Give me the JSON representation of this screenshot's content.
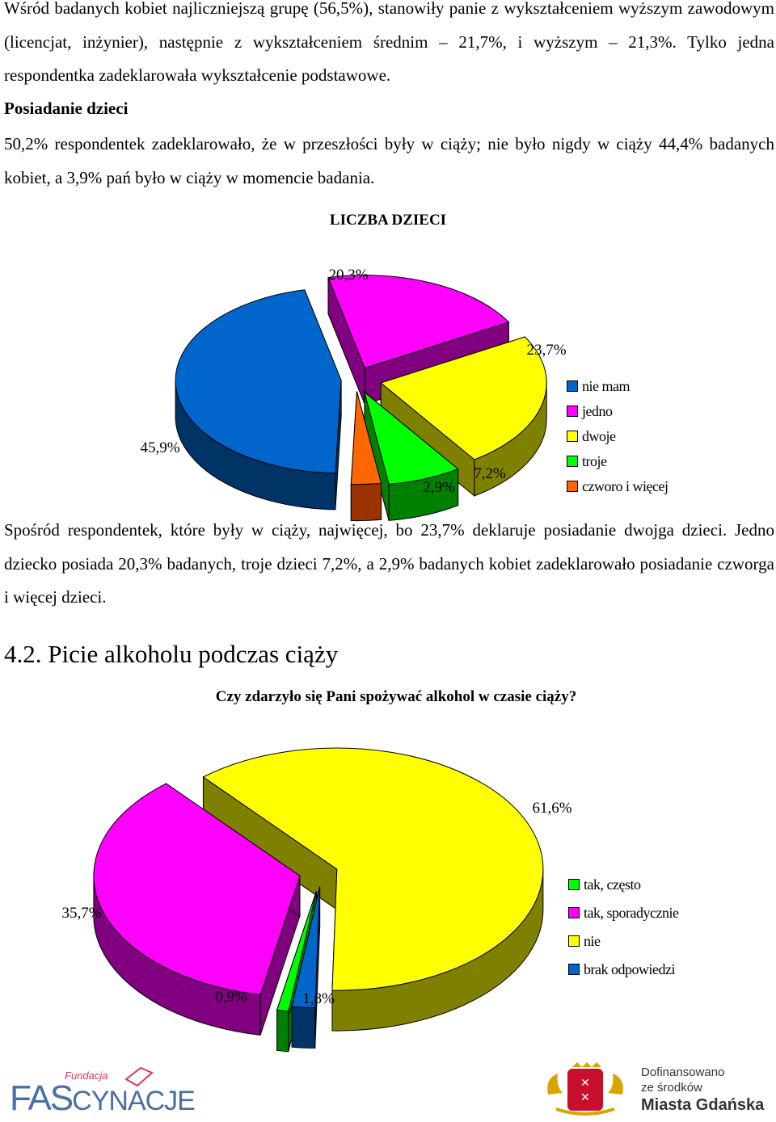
{
  "text": {
    "para1": "Wśród badanych kobiet najliczniejszą grupę (56,5%), stanowiły panie z wykształceniem wyższym zawodowym (licencjat, inżynier), następnie z wykształceniem średnim – 21,7%, i wyższym – 21,3%. Tylko jedna respondentka zadeklarowała wykształcenie podstawowe.",
    "heading_children": "Posiadanie dzieci",
    "para2": "50,2% respondentek zadeklarowało, że w przeszłości były w ciąży; nie było nigdy w ciąży 44,4% badanych kobiet, a 3,9% pań było w ciąży w momencie badania.",
    "para3": "Spośród respondentek, które były w ciąży, najwięcej, bo 23,7% deklaruje posiadanie dwojga dzieci. Jedno dziecko posiada 20,3% badanych, troje dzieci 7,2%, a 2,9% badanych kobiet zadeklarowało posiadanie czworga i więcej dzieci.",
    "section_title": "4.2. Picie alkoholu podczas ciąży"
  },
  "chart_data": [
    {
      "type": "pie",
      "style": "3d-exploded",
      "title": "LICZBA DZIECI",
      "categories": [
        "nie mam",
        "jedno",
        "dwoje",
        "troje",
        "czworo i więcej"
      ],
      "values": [
        45.9,
        20.3,
        23.7,
        7.2,
        2.9
      ],
      "data_labels": [
        "45,9%",
        "20,3%",
        "23,7%",
        "7,2%",
        "2,9%"
      ],
      "colors": [
        "#0066CC",
        "#FF00FF",
        "#FFFF00",
        "#00FF00",
        "#FF6600"
      ],
      "side_colors": [
        "#003366",
        "#800080",
        "#808000",
        "#008000",
        "#993300"
      ],
      "legend_position": "right"
    },
    {
      "type": "pie",
      "style": "3d-exploded",
      "title": "Czy zdarzyło się Pani spożywać alkohol w czasie ciąży?",
      "categories": [
        "tak, często",
        "tak, sporadycznie",
        "nie",
        "brak odpowiedzi"
      ],
      "values": [
        0.9,
        35.7,
        61.6,
        1.8
      ],
      "data_labels": [
        "0,9%",
        "35,7%",
        "61,6%",
        "1,8%"
      ],
      "colors": [
        "#00FF00",
        "#FF00FF",
        "#FFFF00",
        "#0066CC"
      ],
      "side_colors": [
        "#008000",
        "#800080",
        "#808000",
        "#003366"
      ],
      "legend_position": "right"
    }
  ],
  "footer": {
    "logo_left_small": "Fundacja",
    "logo_left_main_a": "FAS",
    "logo_left_main_b": "CYNACJE",
    "logo_right_line1": "Dofinansowano",
    "logo_right_line2": "ze środków",
    "logo_right_line3": "Miasta Gdańska"
  }
}
